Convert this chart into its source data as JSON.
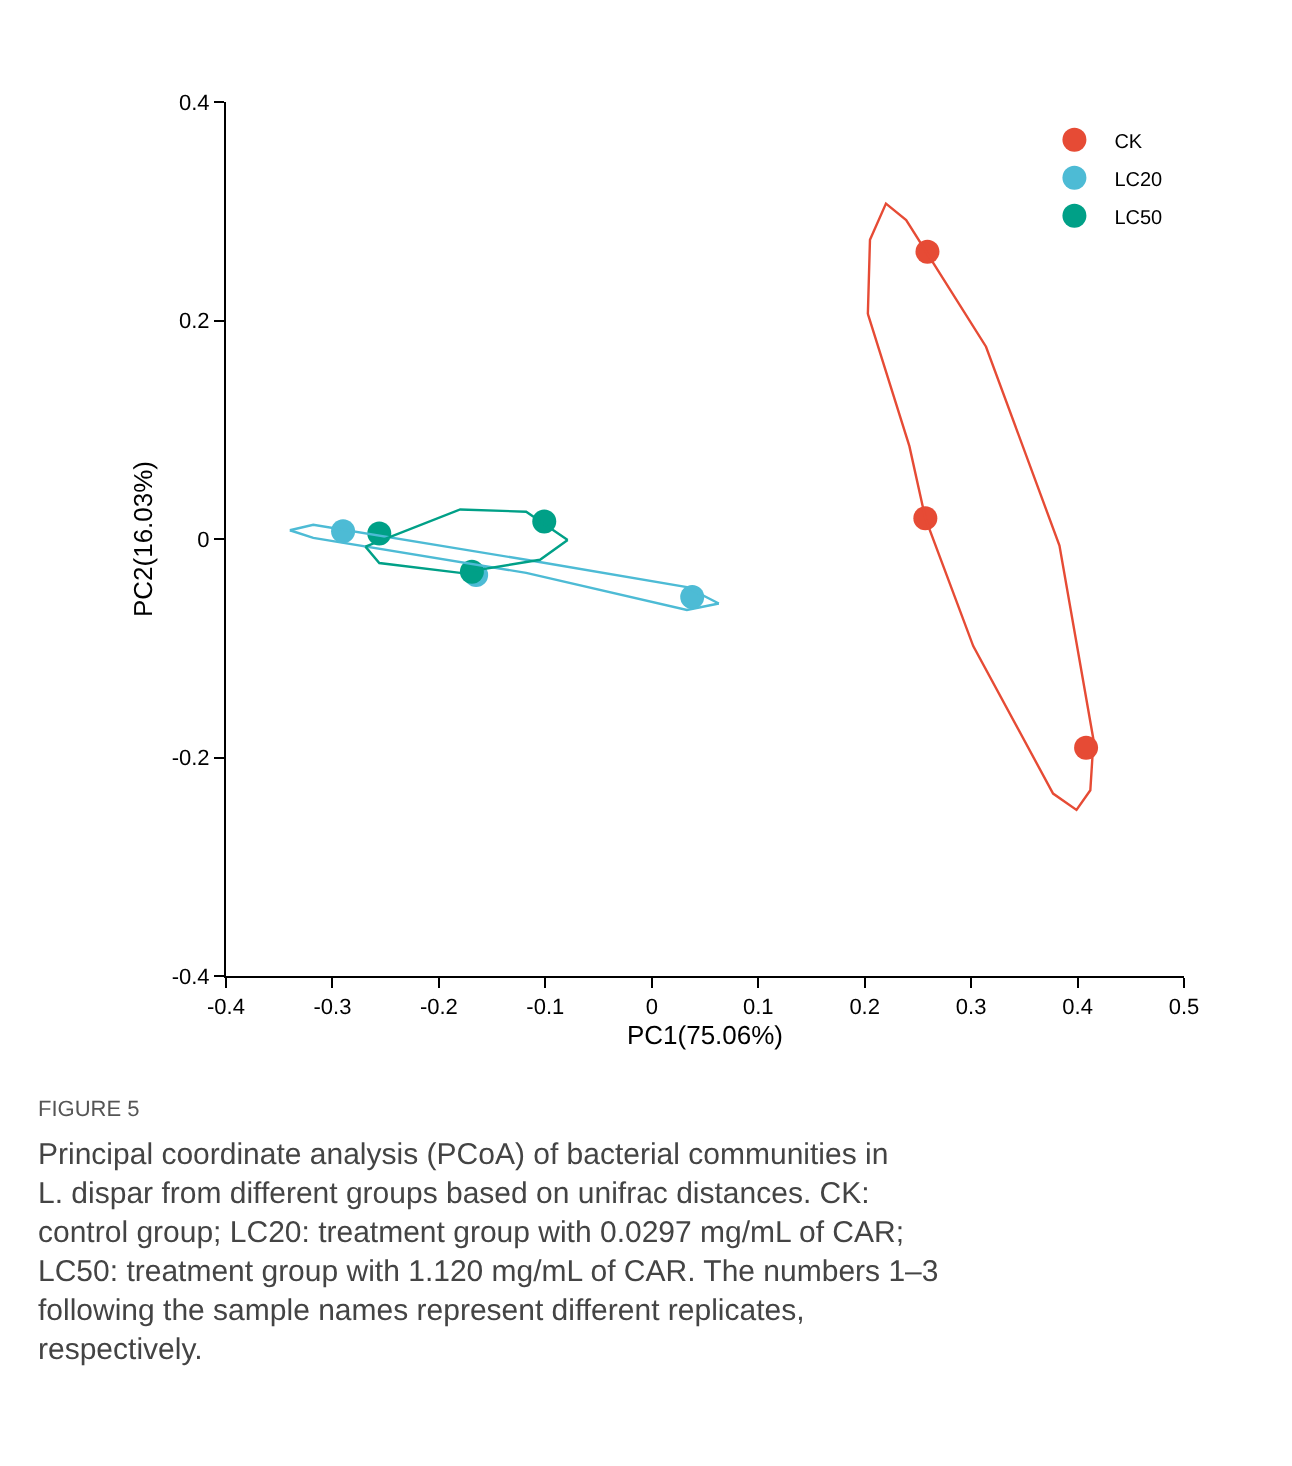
{
  "chart_data": {
    "type": "scatter",
    "xlabel": "PC1(75.06%)",
    "ylabel": "PC2(16.03%)",
    "xlim": [
      -0.4,
      0.5
    ],
    "xticks": [
      -0.4,
      -0.3,
      -0.2,
      -0.1,
      0,
      0.1,
      0.2,
      0.3,
      0.4,
      0.5
    ],
    "ylim": [
      -0.4,
      0.4
    ],
    "yticks": [
      -0.4,
      -0.2,
      0,
      0.2,
      0.4
    ],
    "legend": "top right",
    "marker": "circle",
    "series": [
      {
        "name": "CK",
        "color": "#e64b35",
        "x": [
          0.259,
          0.257,
          0.408
        ],
        "values": [
          0.263,
          0.019,
          -0.191
        ]
      },
      {
        "name": "LC20",
        "color": "#4dbbd5",
        "x": [
          -0.29,
          -0.165,
          0.038
        ],
        "values": [
          0.007,
          -0.033,
          -0.053
        ]
      },
      {
        "name": "LC50",
        "color": "#00a087",
        "x": [
          -0.256,
          -0.169,
          -0.101
        ],
        "values": [
          0.005,
          -0.03,
          0.016
        ]
      },
      {
        "type": "line",
        "marker": "none",
        "color": "#e64b35",
        "x": [
          0.203,
          0.205,
          0.22,
          0.239,
          0.314,
          0.383,
          0.415,
          null,
          0.203,
          0.242,
          0.257,
          0.302,
          0.377,
          0.399,
          0.412,
          0.415
        ],
        "values": [
          0.206,
          0.274,
          0.307,
          0.292,
          0.176,
          -0.006,
          -0.184,
          null,
          0.206,
          0.085,
          0.019,
          -0.098,
          -0.233,
          -0.248,
          -0.23,
          -0.184
        ]
      },
      {
        "type": "line",
        "marker": "none",
        "color": "#4dbbd5",
        "x": [
          -0.34,
          -0.318,
          -0.118,
          0.033,
          0.063
        ],
        "values": [
          0.008,
          0.013,
          -0.019,
          -0.044,
          -0.059
        ]
      },
      {
        "type": "line",
        "marker": "none",
        "color": "#4dbbd5",
        "x": [
          -0.34,
          -0.318,
          -0.118,
          0.033,
          0.063
        ],
        "values": [
          0.008,
          0.001,
          -0.031,
          -0.065,
          -0.059
        ]
      },
      {
        "type": "line",
        "marker": "none",
        "color": "#00a087",
        "x": [
          -0.269,
          -0.18,
          -0.118,
          -0.079
        ],
        "values": [
          -0.007,
          0.027,
          0.025,
          -0.001
        ]
      },
      {
        "type": "line",
        "marker": "none",
        "color": "#00a087",
        "x": [
          -0.269,
          -0.256,
          -0.18,
          -0.105,
          -0.079
        ],
        "values": [
          -0.007,
          -0.022,
          -0.031,
          -0.019,
          -0.001
        ]
      }
    ],
    "annotations": [
      "FIGURE 5",
      "Principal coordinate analysis (PCoA) of bacterial communities in L. dispar from different groups based on unifrac distances. CK: control group; LC20: treatment group with 0.0297 mg/mL of CAR; LC50: treatment group with 1.120 mg/mL of CAR. The numbers 1–3 following the sample names represent different replicates, respectively."
    ]
  }
}
